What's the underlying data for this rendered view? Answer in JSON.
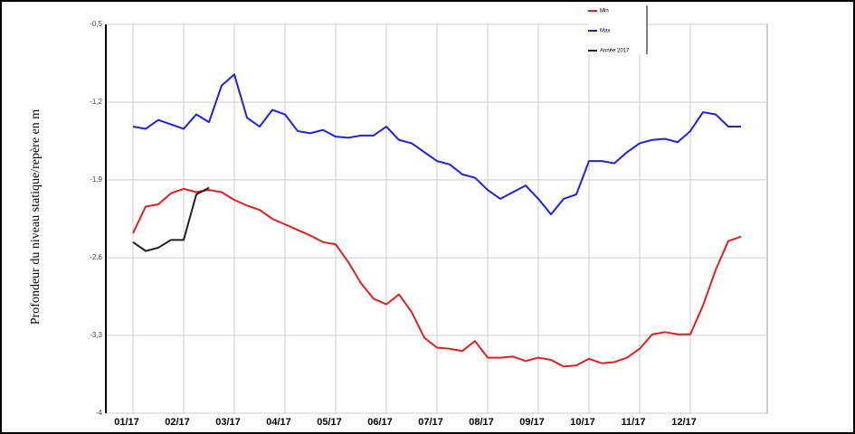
{
  "chart_data": {
    "type": "line",
    "ylabel": "Profondeur du niveau statique/repère en m",
    "categories": [
      "01/17",
      null,
      null,
      null,
      "02/17",
      null,
      null,
      null,
      "03/17",
      null,
      null,
      null,
      "04/17",
      null,
      null,
      null,
      "05/17",
      null,
      null,
      null,
      "06/17",
      null,
      null,
      null,
      "07/17",
      null,
      null,
      null,
      "08/17",
      null,
      null,
      null,
      "09/17",
      null,
      null,
      null,
      "10/17",
      null,
      null,
      null,
      "11/17",
      null,
      null,
      null,
      "12/17",
      null,
      null,
      null,
      null
    ],
    "series": [
      {
        "name": "Min",
        "color": "#e02020",
        "values": [
          -2.38,
          -2.14,
          -2.12,
          -2.02,
          -1.98,
          -2.01,
          -1.99,
          -2.01,
          -2.08,
          -2.13,
          -2.17,
          -2.25,
          -2.3,
          -2.35,
          -2.4,
          -2.46,
          -2.48,
          -2.64,
          -2.83,
          -2.97,
          -3.02,
          -2.93,
          -3.09,
          -3.32,
          -3.41,
          -3.42,
          -3.44,
          -3.35,
          -3.5,
          -3.5,
          -3.49,
          -3.53,
          -3.5,
          -3.52,
          -3.58,
          -3.57,
          -3.51,
          -3.55,
          -3.54,
          -3.5,
          -3.42,
          -3.29,
          -3.27,
          -3.29,
          -3.29,
          -3.03,
          -2.71,
          -2.45,
          -2.41
        ]
      },
      {
        "name": "Max",
        "color": "#2020e0",
        "values": [
          -1.42,
          -1.44,
          -1.36,
          -1.4,
          -1.44,
          -1.31,
          -1.38,
          -1.05,
          -0.95,
          -1.34,
          -1.42,
          -1.27,
          -1.31,
          -1.46,
          -1.48,
          -1.45,
          -1.51,
          -1.52,
          -1.5,
          -1.5,
          -1.42,
          -1.54,
          -1.57,
          -1.65,
          -1.73,
          -1.76,
          -1.85,
          -1.88,
          -1.99,
          -2.07,
          -2.01,
          -1.95,
          -2.07,
          -2.21,
          -2.07,
          -2.03,
          -1.73,
          -1.73,
          -1.75,
          -1.65,
          -1.57,
          -1.54,
          -1.53,
          -1.56,
          -1.46,
          -1.29,
          -1.31,
          -1.42,
          -1.42
        ]
      },
      {
        "name": "Année 2017",
        "color": "#202020",
        "values": [
          -2.46,
          -2.54,
          -2.51,
          -2.44,
          -2.44,
          -2.03,
          -1.97,
          null,
          null,
          null,
          null,
          null,
          null,
          null,
          null,
          null,
          null,
          null,
          null,
          null,
          null,
          null,
          null,
          null,
          null,
          null,
          null,
          null,
          null,
          null,
          null,
          null,
          null,
          null,
          null,
          null,
          null,
          null,
          null,
          null,
          null,
          null,
          null,
          null,
          null,
          null,
          null,
          null,
          null
        ]
      }
    ],
    "ylim": [
      -4,
      -0.5
    ],
    "yticks": [
      {
        "value": -4,
        "label": "-4"
      },
      {
        "value": -3.3,
        "label": "-3,3"
      },
      {
        "value": -2.6,
        "label": "-2,6"
      },
      {
        "value": -1.9,
        "label": "-1,9"
      },
      {
        "value": -1.2,
        "label": "-1,2"
      },
      {
        "value": -0.5,
        "label": "-0,5"
      }
    ],
    "grid": true,
    "legend": "upper right"
  }
}
